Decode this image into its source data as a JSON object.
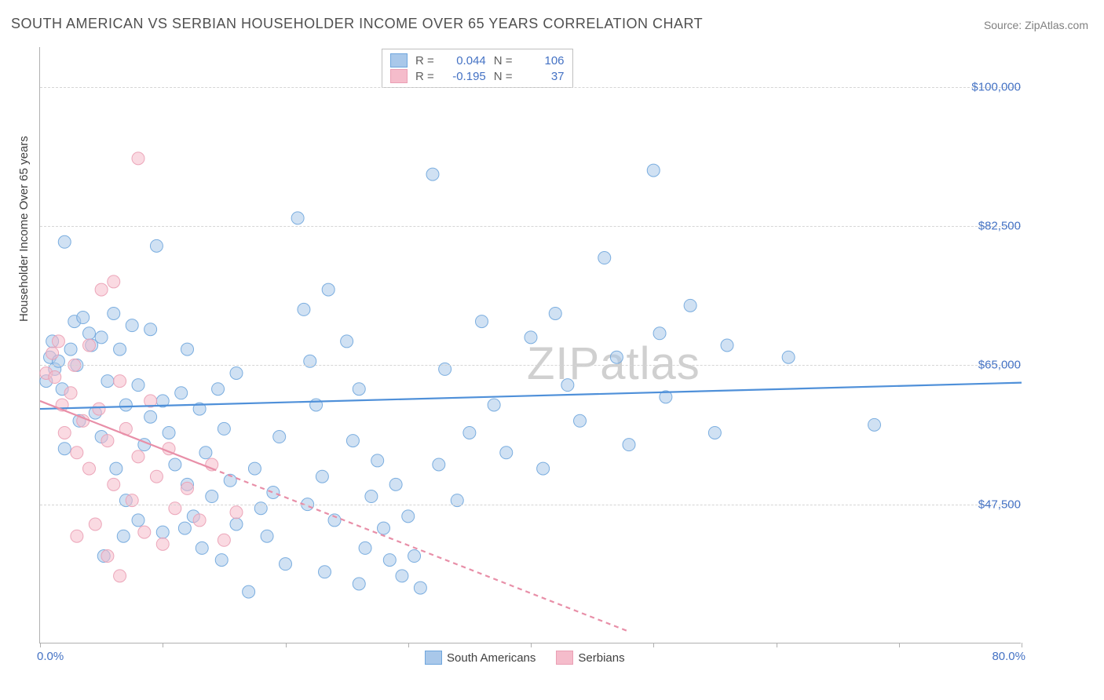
{
  "title": "SOUTH AMERICAN VS SERBIAN HOUSEHOLDER INCOME OVER 65 YEARS CORRELATION CHART",
  "source_prefix": "Source: ",
  "source_name": "ZipAtlas.com",
  "ylabel": "Householder Income Over 65 years",
  "watermark": "ZIPatlas",
  "chart": {
    "type": "scatter",
    "xlim": [
      0,
      80
    ],
    "ylim": [
      30000,
      105000
    ],
    "x_ticks": [
      0,
      10,
      20,
      30,
      40,
      50,
      60,
      70,
      80
    ],
    "x_tick_labels": {
      "0": "0.0%",
      "80": "80.0%"
    },
    "y_gridlines": [
      47500,
      65000,
      82500,
      100000
    ],
    "y_tick_labels": {
      "47500": "$47,500",
      "65000": "$65,000",
      "82500": "$82,500",
      "100000": "$100,000"
    },
    "background_color": "#ffffff",
    "grid_color": "#d5d5d5",
    "axis_color": "#b0b0b0",
    "marker_radius": 8,
    "marker_opacity": 0.55,
    "marker_stroke_opacity": 0.9,
    "line_width": 2.2,
    "series": [
      {
        "name": "South Americans",
        "color": "#4f90d9",
        "fill": "#a9c8ea",
        "stroke": "#6fa6dd",
        "R": "0.044",
        "N": "106",
        "trend": {
          "x1": 0,
          "y1": 59500,
          "x2": 80,
          "y2": 62800,
          "dash": "none"
        },
        "points": [
          [
            0.5,
            63000
          ],
          [
            0.8,
            66000
          ],
          [
            1.0,
            68000
          ],
          [
            1.2,
            64500
          ],
          [
            1.5,
            65500
          ],
          [
            1.8,
            62000
          ],
          [
            2.0,
            54500
          ],
          [
            2.0,
            80500
          ],
          [
            2.5,
            67000
          ],
          [
            2.8,
            70500
          ],
          [
            3.0,
            65000
          ],
          [
            3.2,
            58000
          ],
          [
            3.5,
            71000
          ],
          [
            4.0,
            69000
          ],
          [
            4.2,
            67500
          ],
          [
            4.5,
            59000
          ],
          [
            5.0,
            68500
          ],
          [
            5.0,
            56000
          ],
          [
            5.5,
            63000
          ],
          [
            6.0,
            71500
          ],
          [
            6.2,
            52000
          ],
          [
            6.5,
            67000
          ],
          [
            7.0,
            60000
          ],
          [
            7.0,
            48000
          ],
          [
            7.5,
            70000
          ],
          [
            8.0,
            62500
          ],
          [
            8.0,
            45500
          ],
          [
            8.5,
            55000
          ],
          [
            9.0,
            58500
          ],
          [
            9.0,
            69500
          ],
          [
            9.5,
            80000
          ],
          [
            10.0,
            60500
          ],
          [
            10.0,
            44000
          ],
          [
            10.5,
            56500
          ],
          [
            11.0,
            52500
          ],
          [
            11.5,
            61500
          ],
          [
            12.0,
            50000
          ],
          [
            12.0,
            67000
          ],
          [
            12.5,
            46000
          ],
          [
            13.0,
            59500
          ],
          [
            13.5,
            54000
          ],
          [
            14.0,
            48500
          ],
          [
            14.5,
            62000
          ],
          [
            15.0,
            57000
          ],
          [
            15.5,
            50500
          ],
          [
            16.0,
            45000
          ],
          [
            16.0,
            64000
          ],
          [
            17.0,
            36500
          ],
          [
            17.5,
            52000
          ],
          [
            18.0,
            47000
          ],
          [
            18.5,
            43500
          ],
          [
            19.0,
            49000
          ],
          [
            19.5,
            56000
          ],
          [
            20.0,
            40000
          ],
          [
            21.0,
            83500
          ],
          [
            21.5,
            72000
          ],
          [
            22.0,
            65500
          ],
          [
            22.5,
            60000
          ],
          [
            23.0,
            51000
          ],
          [
            23.5,
            74500
          ],
          [
            24.0,
            45500
          ],
          [
            25.0,
            68000
          ],
          [
            25.5,
            55500
          ],
          [
            26.0,
            62000
          ],
          [
            26.0,
            37500
          ],
          [
            26.5,
            42000
          ],
          [
            27.0,
            48500
          ],
          [
            27.5,
            53000
          ],
          [
            28.0,
            44500
          ],
          [
            28.5,
            40500
          ],
          [
            29.0,
            50000
          ],
          [
            29.5,
            38500
          ],
          [
            30.0,
            46000
          ],
          [
            30.5,
            41000
          ],
          [
            31.0,
            37000
          ],
          [
            32.0,
            89000
          ],
          [
            32.5,
            52500
          ],
          [
            33.0,
            64500
          ],
          [
            34.0,
            48000
          ],
          [
            35.0,
            56500
          ],
          [
            36.0,
            70500
          ],
          [
            37.0,
            60000
          ],
          [
            38.0,
            54000
          ],
          [
            40.0,
            68500
          ],
          [
            41.0,
            52000
          ],
          [
            42.0,
            71500
          ],
          [
            43.0,
            62500
          ],
          [
            44.0,
            58000
          ],
          [
            46.0,
            78500
          ],
          [
            47.0,
            66000
          ],
          [
            48.0,
            55000
          ],
          [
            50.0,
            89500
          ],
          [
            50.5,
            69000
          ],
          [
            51.0,
            61000
          ],
          [
            53.0,
            72500
          ],
          [
            55.0,
            56500
          ],
          [
            56.0,
            67500
          ],
          [
            61.0,
            66000
          ],
          [
            68.0,
            57500
          ],
          [
            5.2,
            41000
          ],
          [
            6.8,
            43500
          ],
          [
            11.8,
            44500
          ],
          [
            13.2,
            42000
          ],
          [
            14.8,
            40500
          ],
          [
            21.8,
            47500
          ],
          [
            23.2,
            39000
          ]
        ]
      },
      {
        "name": "Serbians",
        "color": "#e88fa8",
        "fill": "#f5bccb",
        "stroke": "#ea9fb4",
        "R": "-0.195",
        "N": "37",
        "trend_solid": {
          "x1": 0,
          "y1": 60500,
          "x2": 14,
          "y2": 52000
        },
        "trend_dash": {
          "x1": 14,
          "y1": 52000,
          "x2": 48,
          "y2": 31500
        },
        "points": [
          [
            0.5,
            64000
          ],
          [
            1.0,
            66500
          ],
          [
            1.2,
            63500
          ],
          [
            1.5,
            68000
          ],
          [
            1.8,
            60000
          ],
          [
            2.0,
            56500
          ],
          [
            2.5,
            61500
          ],
          [
            2.8,
            65000
          ],
          [
            3.0,
            54000
          ],
          [
            3.0,
            43500
          ],
          [
            3.5,
            58000
          ],
          [
            4.0,
            67500
          ],
          [
            4.0,
            52000
          ],
          [
            4.5,
            45000
          ],
          [
            4.8,
            59500
          ],
          [
            5.0,
            74500
          ],
          [
            5.5,
            55500
          ],
          [
            5.5,
            41000
          ],
          [
            6.0,
            50000
          ],
          [
            6.0,
            75500
          ],
          [
            6.5,
            63000
          ],
          [
            6.5,
            38500
          ],
          [
            7.0,
            57000
          ],
          [
            7.5,
            48000
          ],
          [
            8.0,
            91000
          ],
          [
            8.0,
            53500
          ],
          [
            8.5,
            44000
          ],
          [
            9.0,
            60500
          ],
          [
            9.5,
            51000
          ],
          [
            10.0,
            42500
          ],
          [
            10.5,
            54500
          ],
          [
            11.0,
            47000
          ],
          [
            12.0,
            49500
          ],
          [
            13.0,
            45500
          ],
          [
            14.0,
            52500
          ],
          [
            15.0,
            43000
          ],
          [
            16.0,
            46500
          ]
        ]
      }
    ]
  },
  "stats_labels": {
    "R": "R =",
    "N": "N ="
  },
  "legend": {
    "items": [
      "South Americans",
      "Serbians"
    ]
  }
}
